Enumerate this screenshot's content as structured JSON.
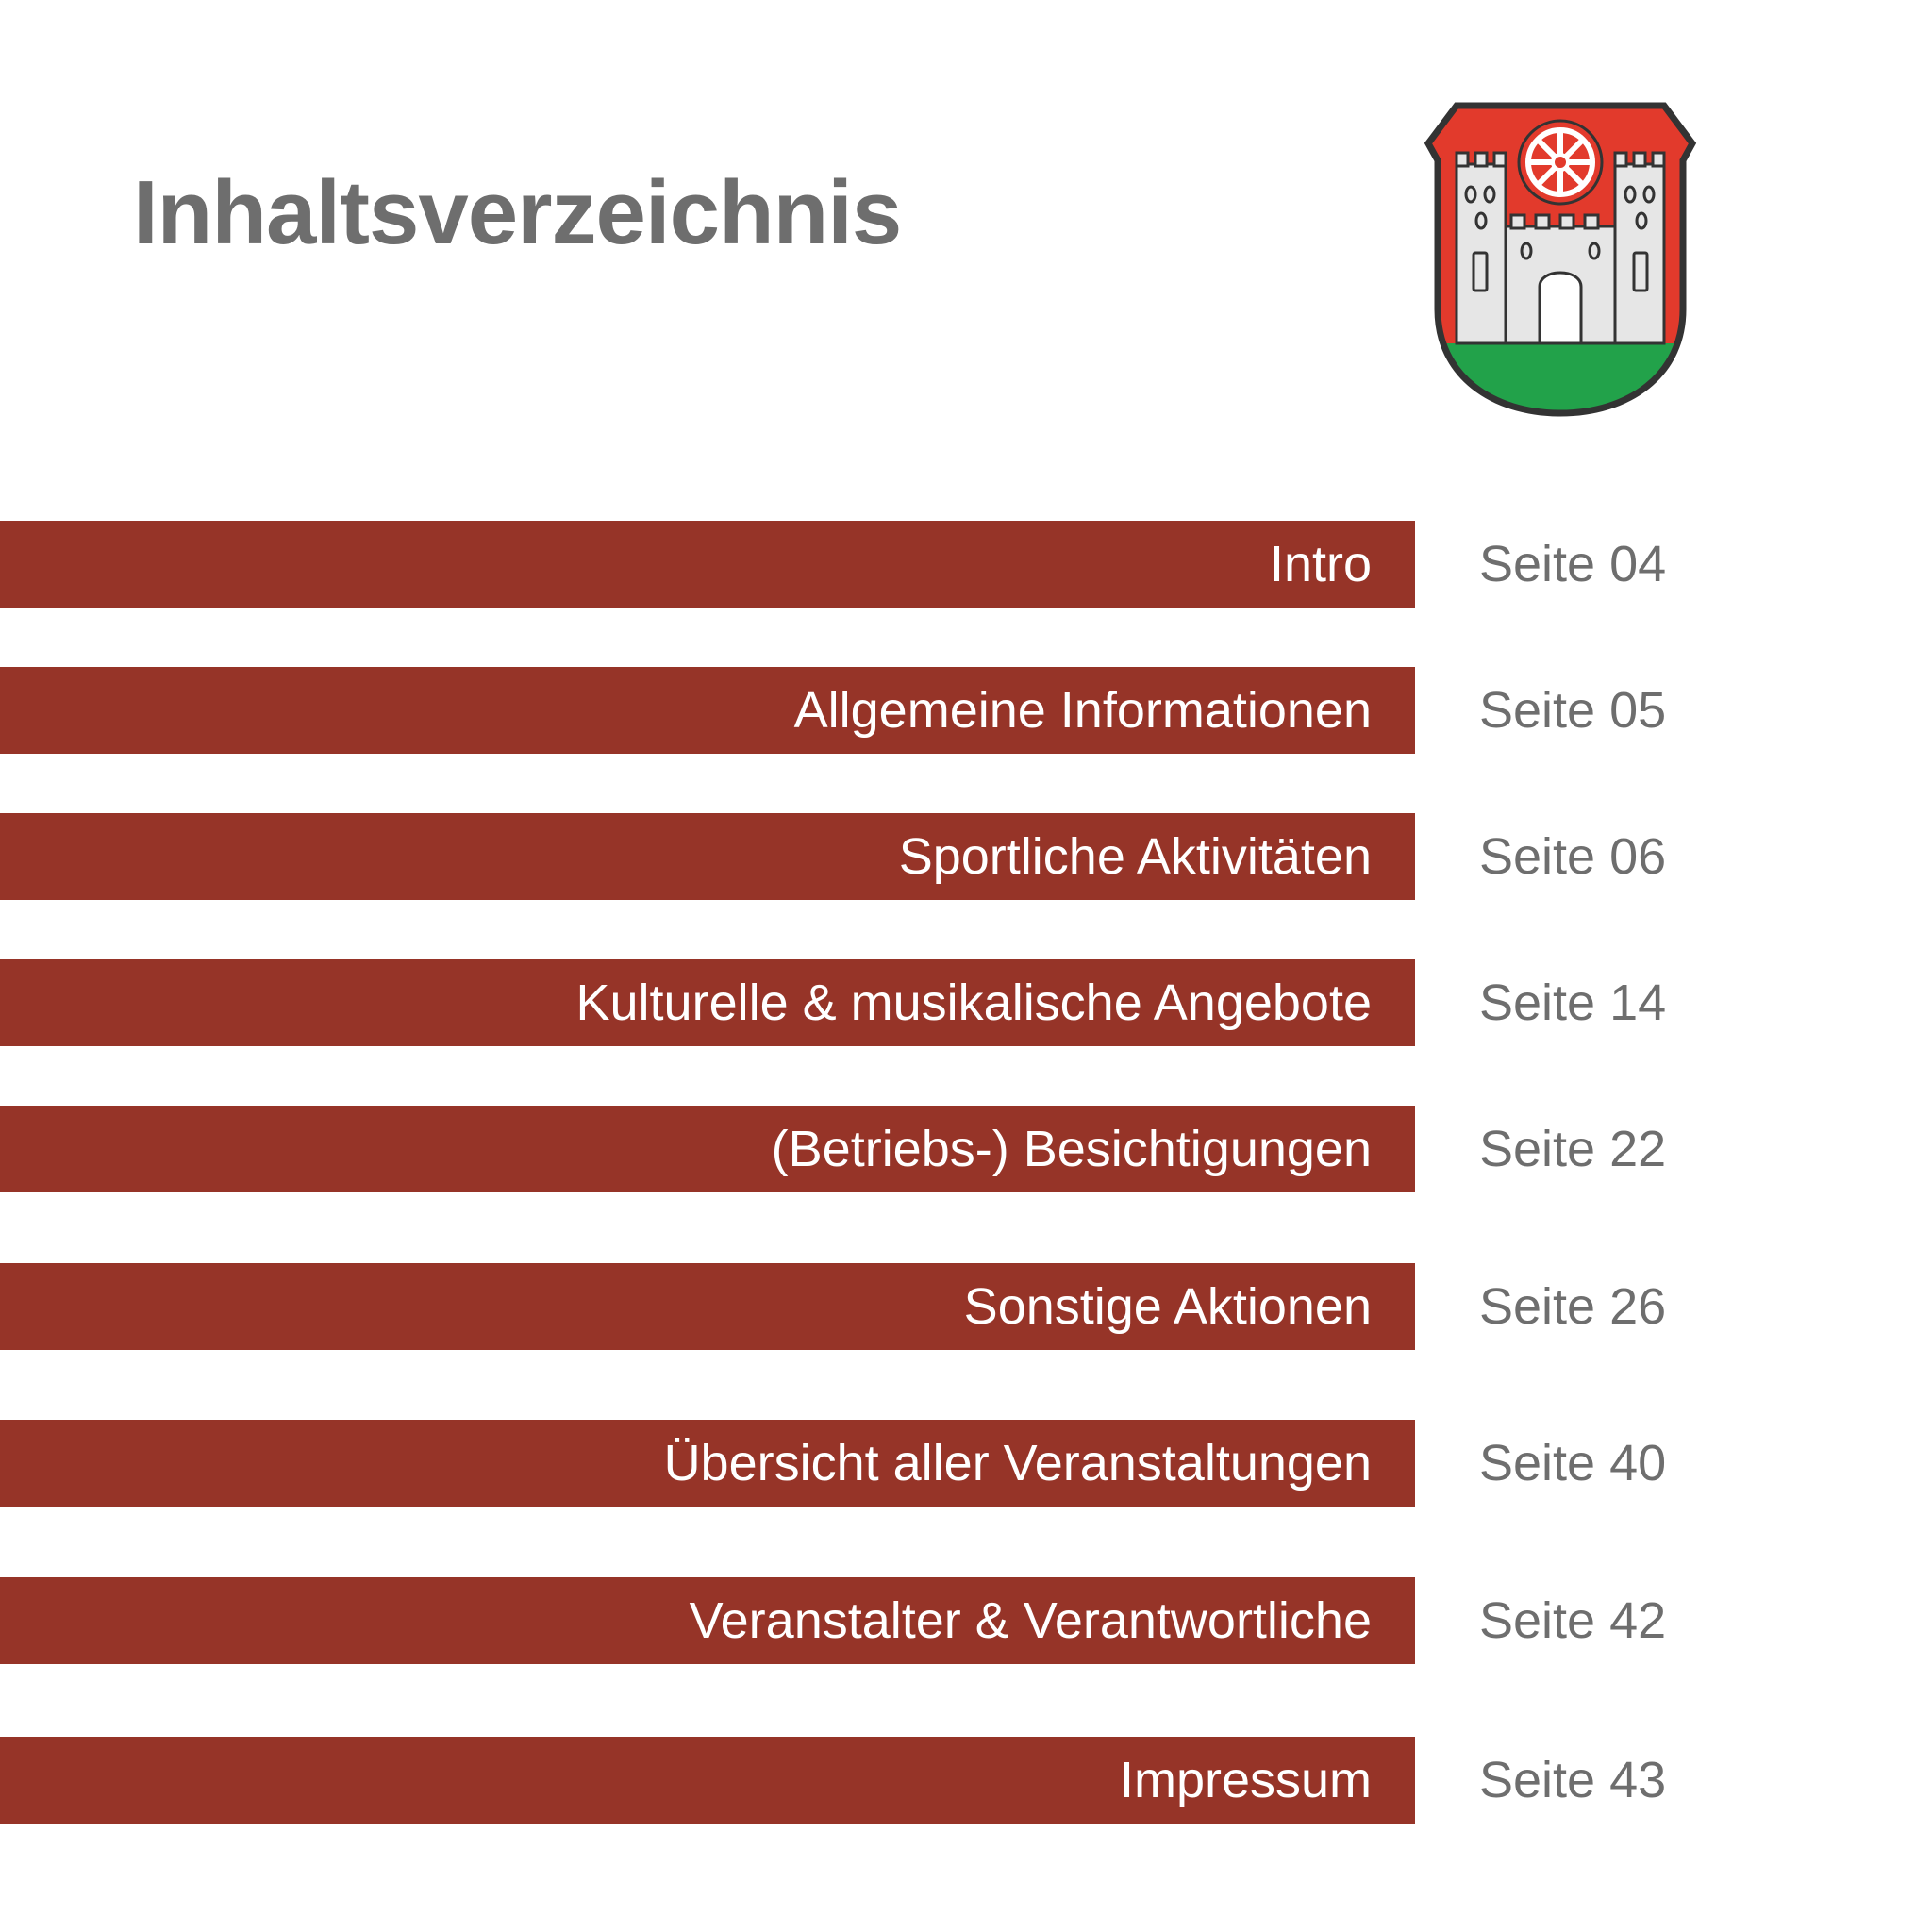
{
  "title": "Inhaltsverzeichnis",
  "crest": {
    "icon": "coat-of-arms-icon",
    "colors": {
      "red": "#e23a2c",
      "green": "#22a24a",
      "castle": "#e6e6e6",
      "outline": "#333333"
    }
  },
  "colors": {
    "bar": "#963428",
    "label_text": "#ffffff",
    "page_text": "#6e6e6e",
    "title_text": "#6e6e6e"
  },
  "toc": {
    "entries": [
      {
        "label": "Intro",
        "page": "Seite 04"
      },
      {
        "label": "Allgemeine Informationen",
        "page": "Seite 05"
      },
      {
        "label": "Sportliche Aktivitäten",
        "page": "Seite 06"
      },
      {
        "label": "Kulturelle & musikalische Angebote",
        "page": "Seite 14"
      },
      {
        "label": "(Betriebs-) Besichtigungen",
        "page": "Seite 22"
      },
      {
        "label": "Sonstige Aktionen",
        "page": "Seite 26"
      },
      {
        "label": "Übersicht aller Veranstaltungen",
        "page": "Seite 40"
      },
      {
        "label": "Veranstalter & Verantwortliche",
        "page": "Seite 42"
      },
      {
        "label": "Impressum",
        "page": "Seite 43"
      }
    ]
  }
}
